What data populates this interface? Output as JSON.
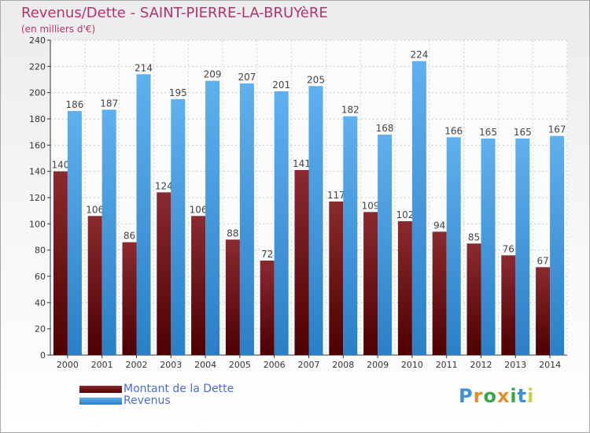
{
  "title": "Revenus/Dette - SAINT-PIERRE-LA-BRUYèRE",
  "subtitle": "(en milliers d'€)",
  "logo": "Proxiti",
  "chart_data": {
    "type": "bar",
    "title": "Revenus/Dette - SAINT-PIERRE-LA-BRUYèRE",
    "ylabel": "(en milliers d'€)",
    "xlabel": "",
    "ylim": [
      0,
      240
    ],
    "yticks": [
      0,
      20,
      40,
      60,
      80,
      100,
      120,
      140,
      160,
      180,
      200,
      220,
      240
    ],
    "grid": true,
    "categories": [
      "2000",
      "2001",
      "2002",
      "2003",
      "2004",
      "2005",
      "2006",
      "2007",
      "2008",
      "2009",
      "2010",
      "2011",
      "2012",
      "2013",
      "2014"
    ],
    "series": [
      {
        "name": "Montant de la Dette",
        "color": "#7a0c12",
        "values": [
          140,
          106,
          86,
          124,
          106,
          88,
          72,
          141,
          117,
          109,
          102,
          94,
          85,
          76,
          67
        ]
      },
      {
        "name": "Revenus",
        "color": "#4ba0e6",
        "values": [
          186,
          187,
          214,
          195,
          209,
          207,
          201,
          205,
          182,
          168,
          224,
          166,
          165,
          165,
          167
        ]
      }
    ],
    "legend": "bottom-left"
  },
  "colors": {
    "title": "#b3346c",
    "legend_text": "#4a6bd1",
    "dette_dark": "#4e0000",
    "dette_light": "#8a2a2f",
    "revenus_dark": "#2a7fc6",
    "revenus_light": "#5fb0ee",
    "logo": [
      "#3d8fd6",
      "#e38a2a",
      "#3aa64a",
      "#e0902e",
      "#3aa64a",
      "#3d8fd6",
      "#c8d23a"
    ]
  }
}
